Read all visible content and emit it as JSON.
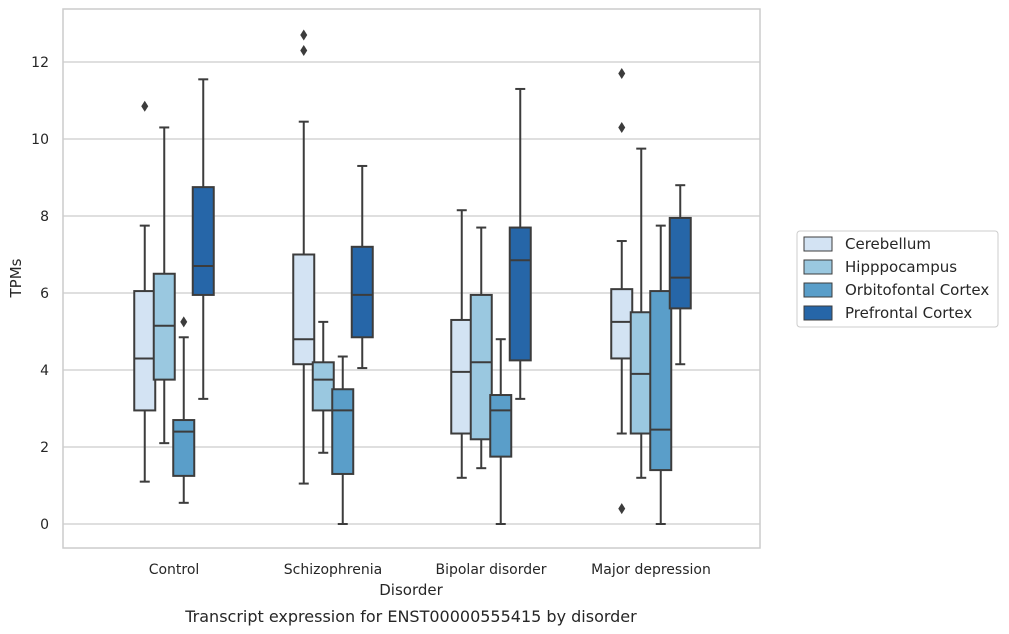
{
  "chart_data": {
    "type": "box",
    "title": "",
    "caption": "Transcript expression for ENST00000555415 by disorder",
    "xlabel": "Disorder",
    "ylabel": "TPMs",
    "ylim": [
      -0.6,
      13.4
    ],
    "yticks": [
      0,
      2,
      4,
      6,
      8,
      10,
      12
    ],
    "grid": "horizontal",
    "legend_position": "right",
    "categories": [
      "Control",
      "Schizophrenia",
      "Bipolar disorder",
      "Major depression"
    ],
    "series": [
      {
        "name": "Cerebellum",
        "color": "#d3e3f3",
        "boxes": [
          {
            "whislo": 1.1,
            "q1": 2.95,
            "med": 4.3,
            "q3": 6.05,
            "whishi": 7.75,
            "fliers": [
              10.85
            ]
          },
          {
            "whislo": 1.05,
            "q1": 4.15,
            "med": 4.8,
            "q3": 7.0,
            "whishi": 10.45,
            "fliers": [
              12.3,
              12.7
            ]
          },
          {
            "whislo": 1.2,
            "q1": 2.35,
            "med": 3.95,
            "q3": 5.3,
            "whishi": 8.15,
            "fliers": []
          },
          {
            "whislo": 2.35,
            "q1": 4.3,
            "med": 5.25,
            "q3": 6.1,
            "whishi": 7.35,
            "fliers": [
              10.3,
              11.7,
              0.4
            ]
          }
        ]
      },
      {
        "name": "Hipppocampus",
        "color": "#9ac8e0",
        "boxes": [
          {
            "whislo": 2.1,
            "q1": 3.75,
            "med": 5.15,
            "q3": 6.5,
            "whishi": 10.3,
            "fliers": []
          },
          {
            "whislo": 1.85,
            "q1": 2.95,
            "med": 3.75,
            "q3": 4.2,
            "whishi": 5.25,
            "fliers": []
          },
          {
            "whislo": 1.45,
            "q1": 2.2,
            "med": 4.2,
            "q3": 5.95,
            "whishi": 7.7,
            "fliers": []
          },
          {
            "whislo": 1.2,
            "q1": 2.35,
            "med": 3.9,
            "q3": 5.5,
            "whishi": 9.75,
            "fliers": []
          }
        ]
      },
      {
        "name": "Orbitofontal Cortex",
        "color": "#5a9ec9",
        "boxes": [
          {
            "whislo": 0.55,
            "q1": 1.25,
            "med": 2.4,
            "q3": 2.7,
            "whishi": 4.85,
            "fliers": [
              5.25
            ]
          },
          {
            "whislo": 0.0,
            "q1": 1.3,
            "med": 2.95,
            "q3": 3.5,
            "whishi": 4.35,
            "fliers": []
          },
          {
            "whislo": 0.0,
            "q1": 1.75,
            "med": 2.95,
            "q3": 3.35,
            "whishi": 4.8,
            "fliers": []
          },
          {
            "whislo": 0.0,
            "q1": 1.4,
            "med": 2.45,
            "q3": 6.05,
            "whishi": 7.75,
            "fliers": []
          }
        ]
      },
      {
        "name": "Prefrontal Cortex",
        "color": "#2666a8",
        "boxes": [
          {
            "whislo": 3.25,
            "q1": 5.95,
            "med": 6.7,
            "q3": 8.75,
            "whishi": 11.55,
            "fliers": []
          },
          {
            "whislo": 4.05,
            "q1": 4.85,
            "med": 5.95,
            "q3": 7.2,
            "whishi": 9.3,
            "fliers": []
          },
          {
            "whislo": 3.25,
            "q1": 4.25,
            "med": 6.85,
            "q3": 7.7,
            "whishi": 11.3,
            "fliers": []
          },
          {
            "whislo": 4.15,
            "q1": 5.6,
            "med": 6.4,
            "q3": 7.95,
            "whishi": 8.8,
            "fliers": []
          }
        ]
      }
    ]
  }
}
